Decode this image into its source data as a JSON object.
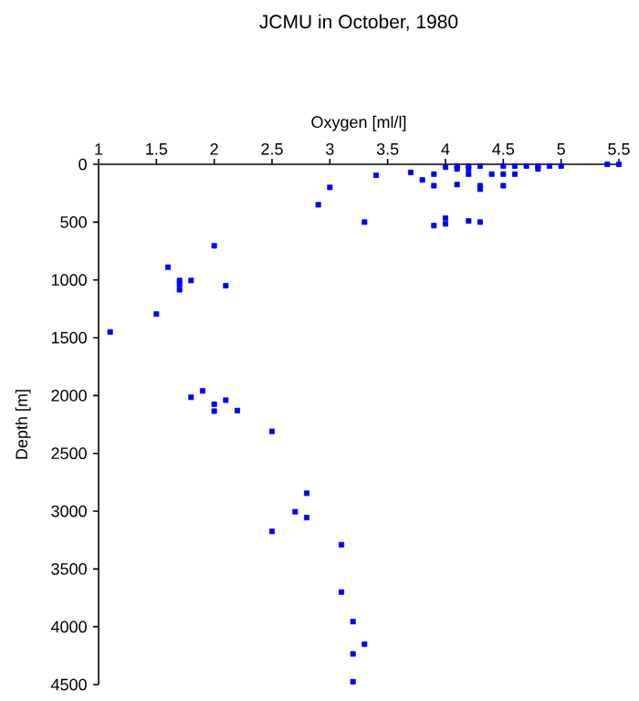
{
  "chart_data": {
    "type": "scatter",
    "title": "JCMU in October, 1980",
    "xlabel": "Oxygen [ml/l]",
    "ylabel": "Depth [m]",
    "xlim": [
      1,
      5.5
    ],
    "xticks": [
      1,
      1.5,
      2,
      2.5,
      3,
      3.5,
      4,
      4.5,
      5,
      5.5
    ],
    "ylim": [
      4500,
      0
    ],
    "yticks": [
      0,
      500,
      1000,
      1500,
      2000,
      2500,
      3000,
      3500,
      4000,
      4500
    ],
    "marker": "square",
    "color": "#0000ff",
    "x": [
      5.5,
      5.4,
      5.0,
      4.9,
      4.8,
      4.8,
      4.7,
      4.6,
      4.6,
      4.5,
      4.5,
      4.5,
      4.4,
      4.3,
      4.3,
      4.3,
      4.3,
      4.2,
      4.2,
      4.2,
      4.2,
      4.1,
      4.1,
      4.1,
      4.0,
      4.0,
      4.0,
      3.9,
      3.9,
      3.9,
      3.8,
      3.7,
      3.4,
      3.3,
      3.0,
      2.9,
      2.0,
      1.6,
      1.7,
      1.7,
      1.7,
      1.8,
      2.1,
      1.5,
      1.1,
      1.8,
      1.9,
      2.0,
      2.0,
      2.1,
      2.2,
      2.5,
      2.8,
      2.7,
      2.8,
      2.5,
      3.1,
      3.1,
      3.2,
      3.3,
      3.2,
      3.2
    ],
    "values": [
      0,
      0,
      15,
      15,
      15,
      40,
      15,
      15,
      85,
      15,
      85,
      185,
      85,
      15,
      185,
      215,
      500,
      15,
      40,
      85,
      490,
      15,
      40,
      175,
      25,
      465,
      515,
      85,
      185,
      530,
      135,
      70,
      95,
      500,
      200,
      350,
      705,
      890,
      1005,
      1040,
      1085,
      1005,
      1050,
      1295,
      1450,
      2015,
      1960,
      2075,
      2135,
      2040,
      2130,
      2310,
      2845,
      3005,
      3055,
      3175,
      3290,
      3700,
      3955,
      4150,
      4235,
      4475
    ]
  }
}
